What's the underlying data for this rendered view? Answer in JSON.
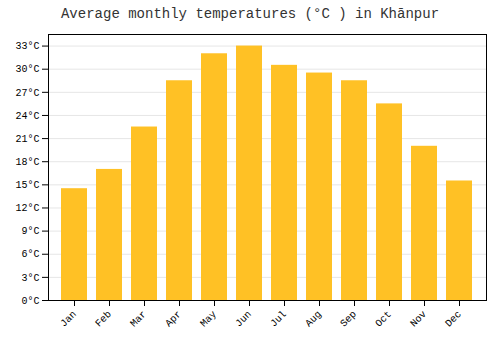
{
  "chart_data": {
    "type": "bar",
    "title": "Average monthly temperatures (°C ) in Khānpur",
    "categories": [
      "Jan",
      "Feb",
      "Mar",
      "Apr",
      "May",
      "Jun",
      "Jul",
      "Aug",
      "Sep",
      "Oct",
      "Nov",
      "Dec"
    ],
    "values": [
      14.5,
      17.0,
      22.5,
      28.5,
      32.0,
      33.0,
      30.5,
      29.5,
      28.5,
      25.5,
      20.0,
      15.5
    ],
    "color": "#FFC125",
    "ylim": [
      0,
      34.5
    ],
    "yticks": [
      {
        "value": 0,
        "label": "0°C"
      },
      {
        "value": 3,
        "label": "3°C"
      },
      {
        "value": 6,
        "label": "6°C"
      },
      {
        "value": 9,
        "label": "9°C"
      },
      {
        "value": 12,
        "label": "12°C"
      },
      {
        "value": 15,
        "label": "15°C"
      },
      {
        "value": 18,
        "label": "18°C"
      },
      {
        "value": 21,
        "label": "21°C"
      },
      {
        "value": 24,
        "label": "24°C"
      },
      {
        "value": 27,
        "label": "27°C"
      },
      {
        "value": 30,
        "label": "30°C"
      },
      {
        "value": 33,
        "label": "33°C"
      }
    ],
    "grid": true
  }
}
